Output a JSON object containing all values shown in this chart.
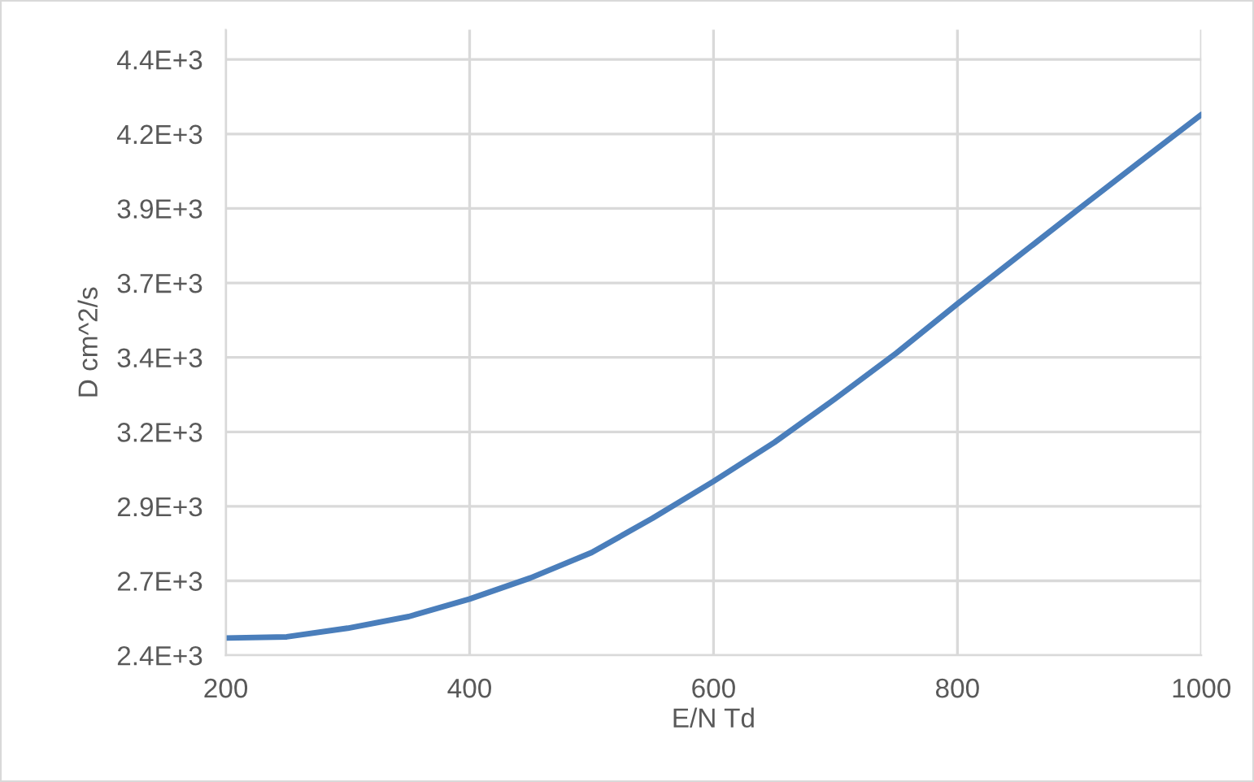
{
  "chart_data": {
    "type": "line",
    "xlabel": "E/N Td",
    "ylabel": "D cm^2/s",
    "x": [
      200,
      250,
      300,
      350,
      400,
      450,
      500,
      550,
      600,
      650,
      700,
      750,
      800,
      850,
      900,
      950,
      1000
    ],
    "series": [
      {
        "color": "#4a7ebb",
        "values": [
          2458,
          2462,
          2491,
          2530,
          2589,
          2660,
          2745,
          2860,
          2984,
          3115,
          3262,
          3415,
          3580,
          3740,
          3900,
          4058,
          4215
        ]
      }
    ],
    "xlim": [
      200,
      1000
    ],
    "xticks": [
      200,
      400,
      600,
      800,
      1000
    ],
    "ylim": [
      2400,
      4500
    ],
    "yticks": [
      {
        "value": 2400,
        "label": "2.4E+3"
      },
      {
        "value": 2650,
        "label": "2.7E+3"
      },
      {
        "value": 2900,
        "label": "2.9E+3"
      },
      {
        "value": 3150,
        "label": "3.2E+3"
      },
      {
        "value": 3400,
        "label": "3.4E+3"
      },
      {
        "value": 3650,
        "label": "3.7E+3"
      },
      {
        "value": 3900,
        "label": "3.9E+3"
      },
      {
        "value": 4150,
        "label": "4.2E+3"
      },
      {
        "value": 4400,
        "label": "4.4E+3"
      }
    ],
    "grid": true
  }
}
